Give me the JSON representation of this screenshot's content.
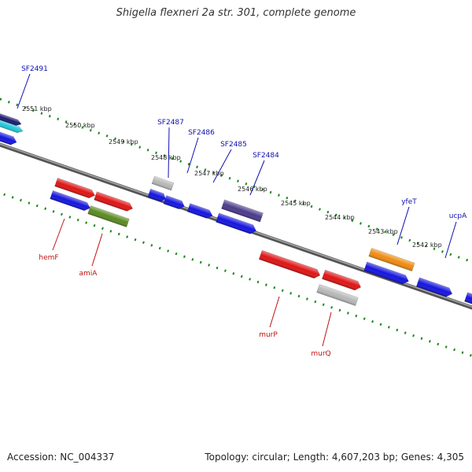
{
  "title": "Shigella flexneri 2a str. 301, complete genome",
  "footer": {
    "accession": "Accession: NC_004337",
    "summary": "Topology: circular; Length: 4,607,203 bp; Genes: 4,305"
  },
  "colors": {
    "backbone": "#777777",
    "tick": "#1a8a1a",
    "top_label": "#1010b0",
    "bottom_label": "#c01010"
  },
  "kbp_labels": [
    "2551 kbp",
    "2550 kbp",
    "2549 kbp",
    "2548 kbp",
    "2547 kbp",
    "2546 kbp",
    "2545 kbp",
    "2544 kbp",
    "2543 kbp",
    "2542 kbp"
  ],
  "genes": [
    {
      "name": "SF2491",
      "strand": "top",
      "color": "#1a1a70"
    },
    {
      "name": "",
      "strand": "top",
      "color": "#22c8d8"
    },
    {
      "name": "",
      "strand": "top",
      "color": "#1414e0"
    },
    {
      "name": "hemF",
      "strand": "bottom",
      "color": "#e01414"
    },
    {
      "name": "",
      "strand": "bottom",
      "color": "#1414e0"
    },
    {
      "name": "",
      "strand": "bottom",
      "color": "#e01414"
    },
    {
      "name": "amiA",
      "strand": "bottom",
      "color": "#5a8a20"
    },
    {
      "name": "SF2487",
      "strand": "top",
      "color": "#b8b8b8"
    },
    {
      "name": "",
      "strand": "top",
      "color": "#1414e0"
    },
    {
      "name": "SF2486",
      "strand": "top",
      "color": "#1414e0"
    },
    {
      "name": "SF2485",
      "strand": "top",
      "color": "#1414e0"
    },
    {
      "name": "SF2484",
      "strand": "top",
      "color": "#4a3a8a"
    },
    {
      "name": "",
      "strand": "top",
      "color": "#1414e0"
    },
    {
      "name": "murP",
      "strand": "bottom",
      "color": "#e01414"
    },
    {
      "name": "",
      "strand": "bottom",
      "color": "#e01414"
    },
    {
      "name": "murQ",
      "strand": "bottom",
      "color": "#b8b8b8"
    },
    {
      "name": "yfeT",
      "strand": "top",
      "color": "#f08c10"
    },
    {
      "name": "",
      "strand": "top",
      "color": "#1414e0"
    },
    {
      "name": "ucpA",
      "strand": "top",
      "color": "#1414e0"
    },
    {
      "name": "",
      "strand": "top",
      "color": "#1414e0"
    }
  ]
}
